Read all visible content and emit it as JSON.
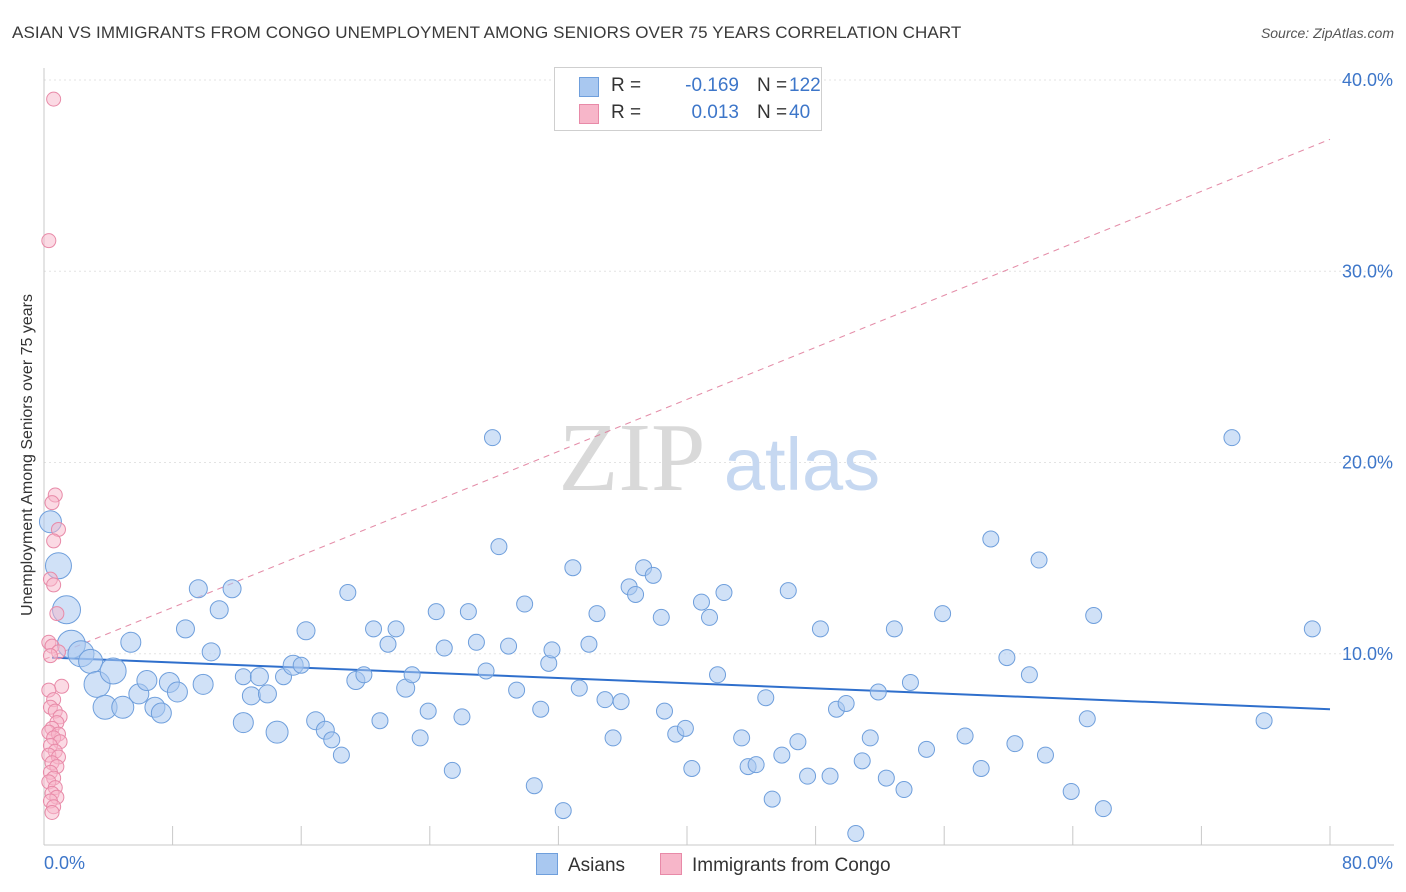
{
  "header": {
    "title": "ASIAN VS IMMIGRANTS FROM CONGO UNEMPLOYMENT AMONG SENIORS OVER 75 YEARS CORRELATION CHART",
    "source": "Source: ZipAtlas.com"
  },
  "stats": {
    "asians": {
      "r_label": "R =",
      "r_value": "-0.169",
      "n_label": "N =",
      "n_value": "122"
    },
    "congo": {
      "r_label": "R =",
      "r_value": "0.013",
      "n_label": "N =",
      "n_value": "40"
    }
  },
  "legend": {
    "asians": "Asians",
    "congo": "Immigrants from Congo"
  },
  "watermark": {
    "zip": "ZIP",
    "atlas": "atlas"
  },
  "colors": {
    "asian_fill": "#a9c8f0",
    "asian_stroke": "#6f9fdc",
    "asian_line": "#2f6fcc",
    "congo_fill": "#f7b6c9",
    "congo_stroke": "#e88aa8",
    "congo_line": "#e07a9a",
    "tick_text": "#3d76c9",
    "grid": "#e3e3e3"
  },
  "chart_data": {
    "type": "scatter",
    "title": "ASIAN VS IMMIGRANTS FROM CONGO UNEMPLOYMENT AMONG SENIORS OVER 75 YEARS CORRELATION CHART",
    "xlabel": "",
    "ylabel": "Unemployment Among Seniors over 75 years",
    "xlim": [
      0,
      80
    ],
    "ylim": [
      0,
      40
    ],
    "x_tick_labels": [
      "0.0%",
      "80.0%"
    ],
    "y_ticks": [
      10,
      20,
      30,
      40
    ],
    "y_tick_labels": [
      "10.0%",
      "20.0%",
      "30.0%",
      "40.0%"
    ],
    "grid": true,
    "series": [
      {
        "name": "Asians",
        "trend": {
          "x": [
            0.5,
            80
          ],
          "y": [
            9.8,
            7.1
          ]
        },
        "points": [
          [
            0.4,
            16.9,
            11
          ],
          [
            0.9,
            14.6,
            13
          ],
          [
            1.4,
            12.3,
            14
          ],
          [
            1.7,
            10.5,
            14
          ],
          [
            2.3,
            10.0,
            13
          ],
          [
            2.9,
            9.6,
            12
          ],
          [
            3.3,
            8.4,
            13
          ],
          [
            4.3,
            9.1,
            13
          ],
          [
            3.8,
            7.2,
            12
          ],
          [
            4.9,
            7.2,
            11
          ],
          [
            5.4,
            10.6,
            10
          ],
          [
            5.9,
            7.9,
            10
          ],
          [
            6.4,
            8.6,
            10
          ],
          [
            6.9,
            7.2,
            10
          ],
          [
            7.3,
            6.9,
            10
          ],
          [
            7.8,
            8.5,
            10
          ],
          [
            8.3,
            8.0,
            10
          ],
          [
            8.8,
            11.3,
            9
          ],
          [
            9.6,
            13.4,
            9
          ],
          [
            9.9,
            8.4,
            10
          ],
          [
            10.4,
            10.1,
            9
          ],
          [
            10.9,
            12.3,
            9
          ],
          [
            11.7,
            13.4,
            9
          ],
          [
            12.4,
            6.4,
            10
          ],
          [
            12.4,
            8.8,
            8
          ],
          [
            12.9,
            7.8,
            9
          ],
          [
            13.4,
            8.8,
            9
          ],
          [
            13.9,
            7.9,
            9
          ],
          [
            14.5,
            5.9,
            11
          ],
          [
            14.9,
            8.8,
            8
          ],
          [
            15.5,
            9.4,
            10
          ],
          [
            16.0,
            9.4,
            8
          ],
          [
            16.3,
            11.2,
            9
          ],
          [
            16.9,
            6.5,
            9
          ],
          [
            17.5,
            6.0,
            9
          ],
          [
            17.9,
            5.5,
            8
          ],
          [
            18.5,
            4.7,
            8
          ],
          [
            18.9,
            13.2,
            8
          ],
          [
            19.4,
            8.6,
            9
          ],
          [
            19.9,
            8.9,
            8
          ],
          [
            20.5,
            11.3,
            8
          ],
          [
            20.9,
            6.5,
            8
          ],
          [
            21.4,
            10.5,
            8
          ],
          [
            21.9,
            11.3,
            8
          ],
          [
            22.5,
            8.2,
            9
          ],
          [
            22.9,
            8.9,
            8
          ],
          [
            23.4,
            5.6,
            8
          ],
          [
            23.9,
            7.0,
            8
          ],
          [
            24.4,
            12.2,
            8
          ],
          [
            24.9,
            10.3,
            8
          ],
          [
            25.4,
            3.9,
            8
          ],
          [
            26.0,
            6.7,
            8
          ],
          [
            26.4,
            12.2,
            8
          ],
          [
            26.9,
            10.6,
            8
          ],
          [
            27.5,
            9.1,
            8
          ],
          [
            27.9,
            21.3,
            8
          ],
          [
            28.3,
            15.6,
            8
          ],
          [
            28.9,
            10.4,
            8
          ],
          [
            29.4,
            8.1,
            8
          ],
          [
            29.9,
            12.6,
            8
          ],
          [
            30.5,
            3.1,
            8
          ],
          [
            30.9,
            7.1,
            8
          ],
          [
            31.4,
            9.5,
            8
          ],
          [
            31.6,
            10.2,
            8
          ],
          [
            32.3,
            1.8,
            8
          ],
          [
            32.9,
            14.5,
            8
          ],
          [
            33.3,
            8.2,
            8
          ],
          [
            33.9,
            10.5,
            8
          ],
          [
            34.4,
            12.1,
            8
          ],
          [
            34.9,
            7.6,
            8
          ],
          [
            35.4,
            5.6,
            8
          ],
          [
            35.9,
            7.5,
            8
          ],
          [
            36.4,
            13.5,
            8
          ],
          [
            36.8,
            13.1,
            8
          ],
          [
            37.3,
            14.5,
            8
          ],
          [
            37.9,
            14.1,
            8
          ],
          [
            38.4,
            11.9,
            8
          ],
          [
            38.6,
            7.0,
            8
          ],
          [
            39.3,
            5.8,
            8
          ],
          [
            39.9,
            6.1,
            8
          ],
          [
            40.3,
            4.0,
            8
          ],
          [
            40.9,
            12.7,
            8
          ],
          [
            41.4,
            11.9,
            8
          ],
          [
            41.9,
            8.9,
            8
          ],
          [
            42.3,
            13.2,
            8
          ],
          [
            43.4,
            5.6,
            8
          ],
          [
            43.8,
            4.1,
            8
          ],
          [
            44.3,
            4.2,
            8
          ],
          [
            44.9,
            7.7,
            8
          ],
          [
            45.3,
            2.4,
            8
          ],
          [
            45.9,
            4.7,
            8
          ],
          [
            46.3,
            13.3,
            8
          ],
          [
            46.9,
            5.4,
            8
          ],
          [
            47.5,
            3.6,
            8
          ],
          [
            48.3,
            11.3,
            8
          ],
          [
            48.9,
            3.6,
            8
          ],
          [
            49.3,
            7.1,
            8
          ],
          [
            49.9,
            7.4,
            8
          ],
          [
            50.5,
            0.6,
            8
          ],
          [
            50.9,
            4.4,
            8
          ],
          [
            51.4,
            5.6,
            8
          ],
          [
            51.9,
            8.0,
            8
          ],
          [
            52.4,
            3.5,
            8
          ],
          [
            52.9,
            11.3,
            8
          ],
          [
            53.5,
            2.9,
            8
          ],
          [
            53.9,
            8.5,
            8
          ],
          [
            54.9,
            5.0,
            8
          ],
          [
            55.9,
            12.1,
            8
          ],
          [
            57.3,
            5.7,
            8
          ],
          [
            58.3,
            4.0,
            8
          ],
          [
            58.9,
            16.0,
            8
          ],
          [
            59.9,
            9.8,
            8
          ],
          [
            60.4,
            5.3,
            8
          ],
          [
            61.3,
            8.9,
            8
          ],
          [
            61.9,
            14.9,
            8
          ],
          [
            62.3,
            4.7,
            8
          ],
          [
            63.9,
            2.8,
            8
          ],
          [
            64.9,
            6.6,
            8
          ],
          [
            65.3,
            12.0,
            8
          ],
          [
            65.9,
            1.9,
            8
          ],
          [
            73.9,
            21.3,
            8
          ],
          [
            75.9,
            6.5,
            8
          ],
          [
            78.9,
            11.3,
            8
          ]
        ]
      },
      {
        "name": "Immigrants from Congo",
        "trend": {
          "x": [
            0,
            80
          ],
          "y": [
            9.7,
            36.9
          ]
        },
        "points": [
          [
            0.6,
            39.0,
            7
          ],
          [
            0.3,
            31.6,
            7
          ],
          [
            0.7,
            18.3,
            7
          ],
          [
            0.5,
            17.9,
            7
          ],
          [
            0.9,
            16.5,
            7
          ],
          [
            0.6,
            15.9,
            7
          ],
          [
            0.4,
            13.9,
            7
          ],
          [
            0.6,
            13.6,
            7
          ],
          [
            0.8,
            12.1,
            7
          ],
          [
            0.3,
            10.6,
            7
          ],
          [
            0.5,
            10.4,
            7
          ],
          [
            0.9,
            10.1,
            7
          ],
          [
            0.4,
            9.9,
            7
          ],
          [
            1.1,
            8.3,
            7
          ],
          [
            0.3,
            8.1,
            7
          ],
          [
            0.6,
            7.6,
            7
          ],
          [
            0.4,
            7.2,
            7
          ],
          [
            0.7,
            7.0,
            7
          ],
          [
            1.0,
            6.7,
            7
          ],
          [
            0.8,
            6.4,
            7
          ],
          [
            0.5,
            6.1,
            7
          ],
          [
            0.3,
            5.9,
            7
          ],
          [
            0.9,
            5.8,
            7
          ],
          [
            0.6,
            5.6,
            7
          ],
          [
            1.0,
            5.4,
            7
          ],
          [
            0.4,
            5.2,
            7
          ],
          [
            0.7,
            4.9,
            7
          ],
          [
            0.3,
            4.7,
            7
          ],
          [
            0.9,
            4.6,
            7
          ],
          [
            0.5,
            4.3,
            7
          ],
          [
            0.8,
            4.1,
            7
          ],
          [
            0.4,
            3.8,
            7
          ],
          [
            0.6,
            3.5,
            7
          ],
          [
            0.3,
            3.3,
            7
          ],
          [
            0.7,
            3.0,
            7
          ],
          [
            0.5,
            2.7,
            7
          ],
          [
            0.8,
            2.5,
            7
          ],
          [
            0.4,
            2.3,
            7
          ],
          [
            0.6,
            2.0,
            7
          ],
          [
            0.5,
            1.7,
            7
          ]
        ]
      }
    ]
  }
}
